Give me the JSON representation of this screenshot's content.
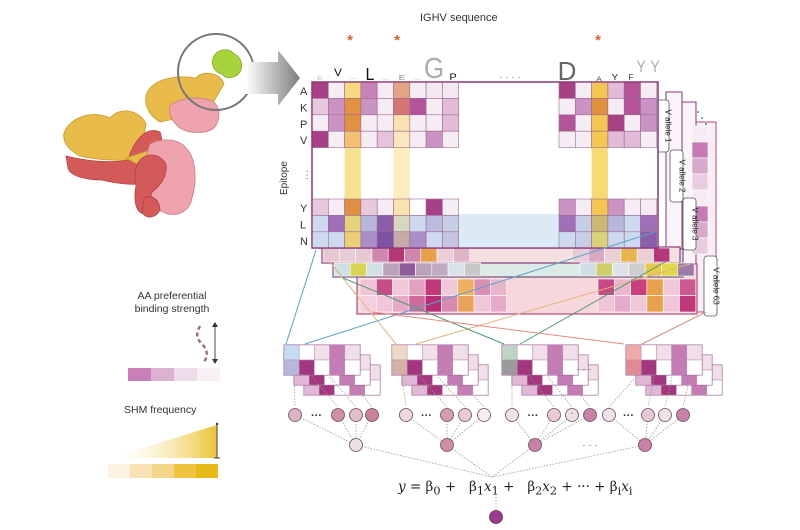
{
  "header": {
    "sequence_title": "IGHV sequence"
  },
  "epitope_axis": {
    "label": "Epitope",
    "residues_top": [
      "A",
      "K",
      "P",
      "V"
    ],
    "ellipsis": "⋮",
    "residues_bottom": [
      "Y",
      "L",
      "N"
    ]
  },
  "sequence_logo": {
    "highlight_marker": "*",
    "highlight_color": "#e0602a",
    "gap_marker": "· · · ·",
    "left_letters": [
      "V",
      "L",
      "E",
      "G",
      "P"
    ],
    "right_letters": [
      "D",
      "A",
      "Y",
      "F",
      "Y",
      "Y"
    ]
  },
  "allele_tabs": [
    {
      "label": "V allele 1"
    },
    {
      "label": "V allele 2"
    },
    {
      "label": "V allele 3"
    },
    {
      "label": "V allele 63"
    }
  ],
  "legends": {
    "binding": {
      "title_line1": "AA preferential",
      "title_line2": "binding strength",
      "colors": [
        "#c97fb7",
        "#ddb1d2",
        "#eedcea",
        "#f7f1f5"
      ]
    },
    "shm": {
      "title": "SHM frequency",
      "colors": [
        "#fdf3e2",
        "#f9e3b4",
        "#f5d58a",
        "#efc33e",
        "#e9b918"
      ]
    }
  },
  "model": {
    "equation": {
      "y": "y",
      "eq": " = ",
      "b0": "β",
      "b0_sub": "0",
      "plus": " + ",
      "b1": "β",
      "b1_sub": "1",
      "x1": "x",
      "x1_sub": "1",
      "b2": "β",
      "b2_sub": "2",
      "x2": "x",
      "x2_sub": "2",
      "ellipsis": " + ··· + ",
      "bi": "β",
      "bi_sub": "i",
      "xi": "x",
      "xi_sub": "i"
    },
    "ellipsis_between_groups": "· · ·",
    "node_ellipsis": "···"
  },
  "colors": {
    "frame": "#8a3a7a",
    "magenta_dark": "#a3367f",
    "magenta_mid": "#c57cb4",
    "magenta_light": "#e8cde2",
    "magenta_pale": "#f6ebf3",
    "orange": "#e08d3c",
    "yellow": "#f3c74f",
    "blue_pale": "#cfe0f1",
    "violet": "#8c5aa7",
    "antibody_yellow": "#e9bb4a",
    "antibody_red": "#d45a5a",
    "antibody_pink": "#eea3ad",
    "antigen_green": "#a8d33a"
  }
}
